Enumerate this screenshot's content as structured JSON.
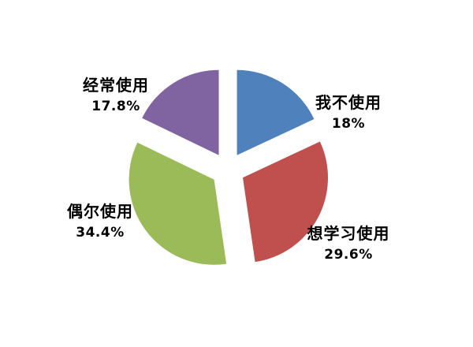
{
  "page": {
    "background_color": "#ffffff"
  },
  "chart_data": {
    "type": "pie",
    "title": "",
    "unit": "%",
    "categories": [
      "我不使用",
      "想学习使用",
      "偶尔使用",
      "经常使用"
    ],
    "values": [
      18,
      29.6,
      34.4,
      17.8
    ],
    "slices": [
      {
        "label": "我不使用",
        "value": 18,
        "pct_label": "18%",
        "color": "#4f81bd"
      },
      {
        "label": "想学习使用",
        "value": 29.6,
        "pct_label": "29.6%",
        "color": "#c0504d"
      },
      {
        "label": "偶尔使用",
        "value": 34.4,
        "pct_label": "34.4%",
        "color": "#9bbb59"
      },
      {
        "label": "经常使用",
        "value": 17.8,
        "pct_label": "17.8%",
        "color": "#8064a2"
      }
    ],
    "start_angle_deg": 0,
    "direction": "clockwise",
    "exploded": true,
    "explode_ratio": 0.2,
    "legend": "none",
    "labels": "outside, category name above percent, bold black text",
    "background": "#ffffff"
  }
}
